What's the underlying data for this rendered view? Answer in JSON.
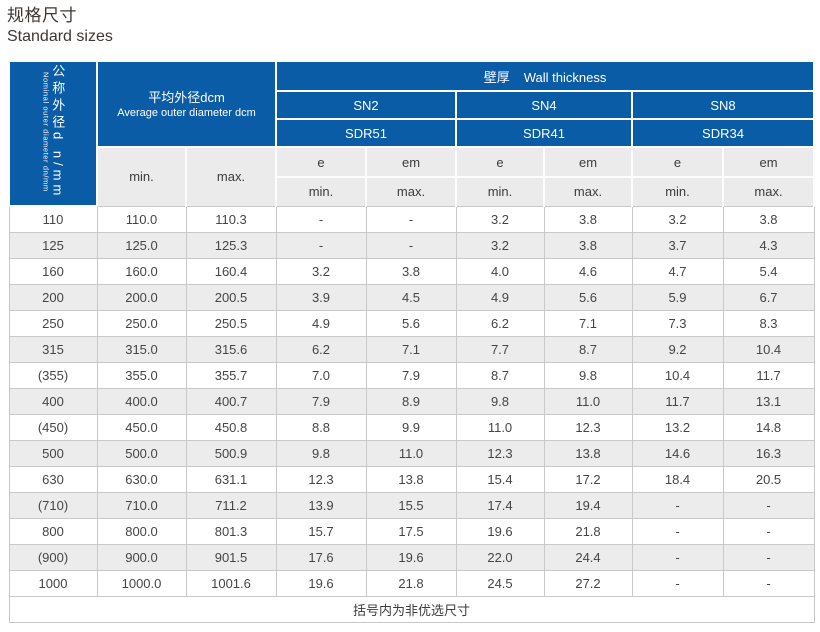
{
  "page": {
    "title_zh": "规格尺寸",
    "title_en": "Standard sizes"
  },
  "colors": {
    "header_blue": "#0b5ca7",
    "header_gray": "#ebebeb",
    "alt_row_gray": "#ececec",
    "border_gray": "#c9c9c9",
    "title_text": "#3d3733"
  },
  "table": {
    "col1_zh": "公称外径d n/mm",
    "col1_en": "Nominal outer diameter dn/mm",
    "avg_zh": "平均外径dcm",
    "avg_en": "Average outer diameter dcm",
    "wall_zh": "壁厚",
    "wall_en": "Wall thickness",
    "sn": [
      "SN2",
      "SN4",
      "SN8"
    ],
    "sdr": [
      "SDR51",
      "SDR41",
      "SDR34"
    ],
    "e_label": "e",
    "em_label": "em",
    "min_label": "min.",
    "max_label": "max.",
    "rows": [
      {
        "dn": "110",
        "min": "110.0",
        "max": "110.3",
        "vals": [
          "-",
          "-",
          "3.2",
          "3.8",
          "3.2",
          "3.8"
        ]
      },
      {
        "dn": "125",
        "min": "125.0",
        "max": "125.3",
        "vals": [
          "-",
          "-",
          "3.2",
          "3.8",
          "3.7",
          "4.3"
        ]
      },
      {
        "dn": "160",
        "min": "160.0",
        "max": "160.4",
        "vals": [
          "3.2",
          "3.8",
          "4.0",
          "4.6",
          "4.7",
          "5.4"
        ]
      },
      {
        "dn": "200",
        "min": "200.0",
        "max": "200.5",
        "vals": [
          "3.9",
          "4.5",
          "4.9",
          "5.6",
          "5.9",
          "6.7"
        ]
      },
      {
        "dn": "250",
        "min": "250.0",
        "max": "250.5",
        "vals": [
          "4.9",
          "5.6",
          "6.2",
          "7.1",
          "7.3",
          "8.3"
        ]
      },
      {
        "dn": "315",
        "min": "315.0",
        "max": "315.6",
        "vals": [
          "6.2",
          "7.1",
          "7.7",
          "8.7",
          "9.2",
          "10.4"
        ]
      },
      {
        "dn": "(355)",
        "min": "355.0",
        "max": "355.7",
        "vals": [
          "7.0",
          "7.9",
          "8.7",
          "9.8",
          "10.4",
          "11.7"
        ]
      },
      {
        "dn": "400",
        "min": "400.0",
        "max": "400.7",
        "vals": [
          "7.9",
          "8.9",
          "9.8",
          "11.0",
          "11.7",
          "13.1"
        ]
      },
      {
        "dn": "(450)",
        "min": "450.0",
        "max": "450.8",
        "vals": [
          "8.8",
          "9.9",
          "11.0",
          "12.3",
          "13.2",
          "14.8"
        ]
      },
      {
        "dn": "500",
        "min": "500.0",
        "max": "500.9",
        "vals": [
          "9.8",
          "11.0",
          "12.3",
          "13.8",
          "14.6",
          "16.3"
        ]
      },
      {
        "dn": "630",
        "min": "630.0",
        "max": "631.1",
        "vals": [
          "12.3",
          "13.8",
          "15.4",
          "17.2",
          "18.4",
          "20.5"
        ]
      },
      {
        "dn": "(710)",
        "min": "710.0",
        "max": "711.2",
        "vals": [
          "13.9",
          "15.5",
          "17.4",
          "19.4",
          "-",
          "-"
        ]
      },
      {
        "dn": "800",
        "min": "800.0",
        "max": "801.3",
        "vals": [
          "15.7",
          "17.5",
          "19.6",
          "21.8",
          "-",
          "-"
        ]
      },
      {
        "dn": "(900)",
        "min": "900.0",
        "max": "901.5",
        "vals": [
          "17.6",
          "19.6",
          "22.0",
          "24.4",
          "-",
          "-"
        ]
      },
      {
        "dn": "1000",
        "min": "1000.0",
        "max": "1001.6",
        "vals": [
          "19.6",
          "21.8",
          "24.5",
          "27.2",
          "-",
          "-"
        ]
      }
    ],
    "footnote": "括号内为非优选尺寸"
  }
}
